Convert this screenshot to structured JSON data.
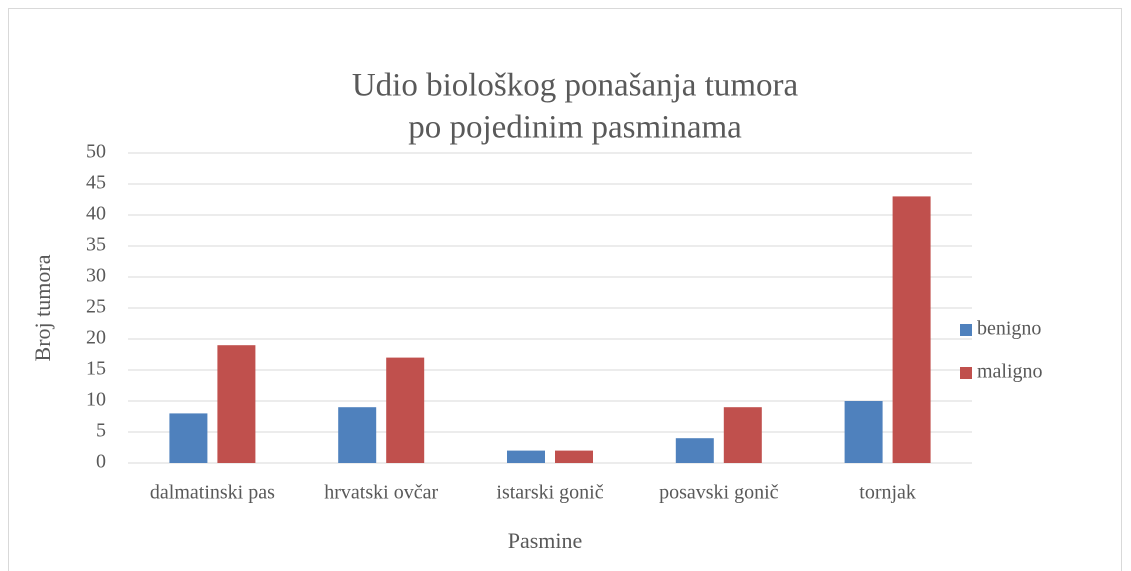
{
  "chart_data": {
    "type": "bar",
    "title": [
      "Udio biološkog ponašanja tumora",
      "po pojedinim pasminama"
    ],
    "x_label": "Pasmine",
    "y_label": "Broj tumora",
    "categories": [
      "dalmatinski pas",
      "hrvatski ovčar",
      "istarski gonič",
      "posavski gonič",
      "tornjak"
    ],
    "series": [
      {
        "name": "benigno",
        "color": "#4f81bd",
        "values": [
          8,
          9,
          2,
          4,
          10
        ]
      },
      {
        "name": "maligno",
        "color": "#c0504d",
        "values": [
          19,
          17,
          2,
          9,
          43
        ]
      }
    ],
    "ylim": [
      0,
      50
    ],
    "yticks": [
      0,
      5,
      10,
      15,
      20,
      25,
      30,
      35,
      40,
      45,
      50
    ],
    "grid": true,
    "legend": "right"
  }
}
